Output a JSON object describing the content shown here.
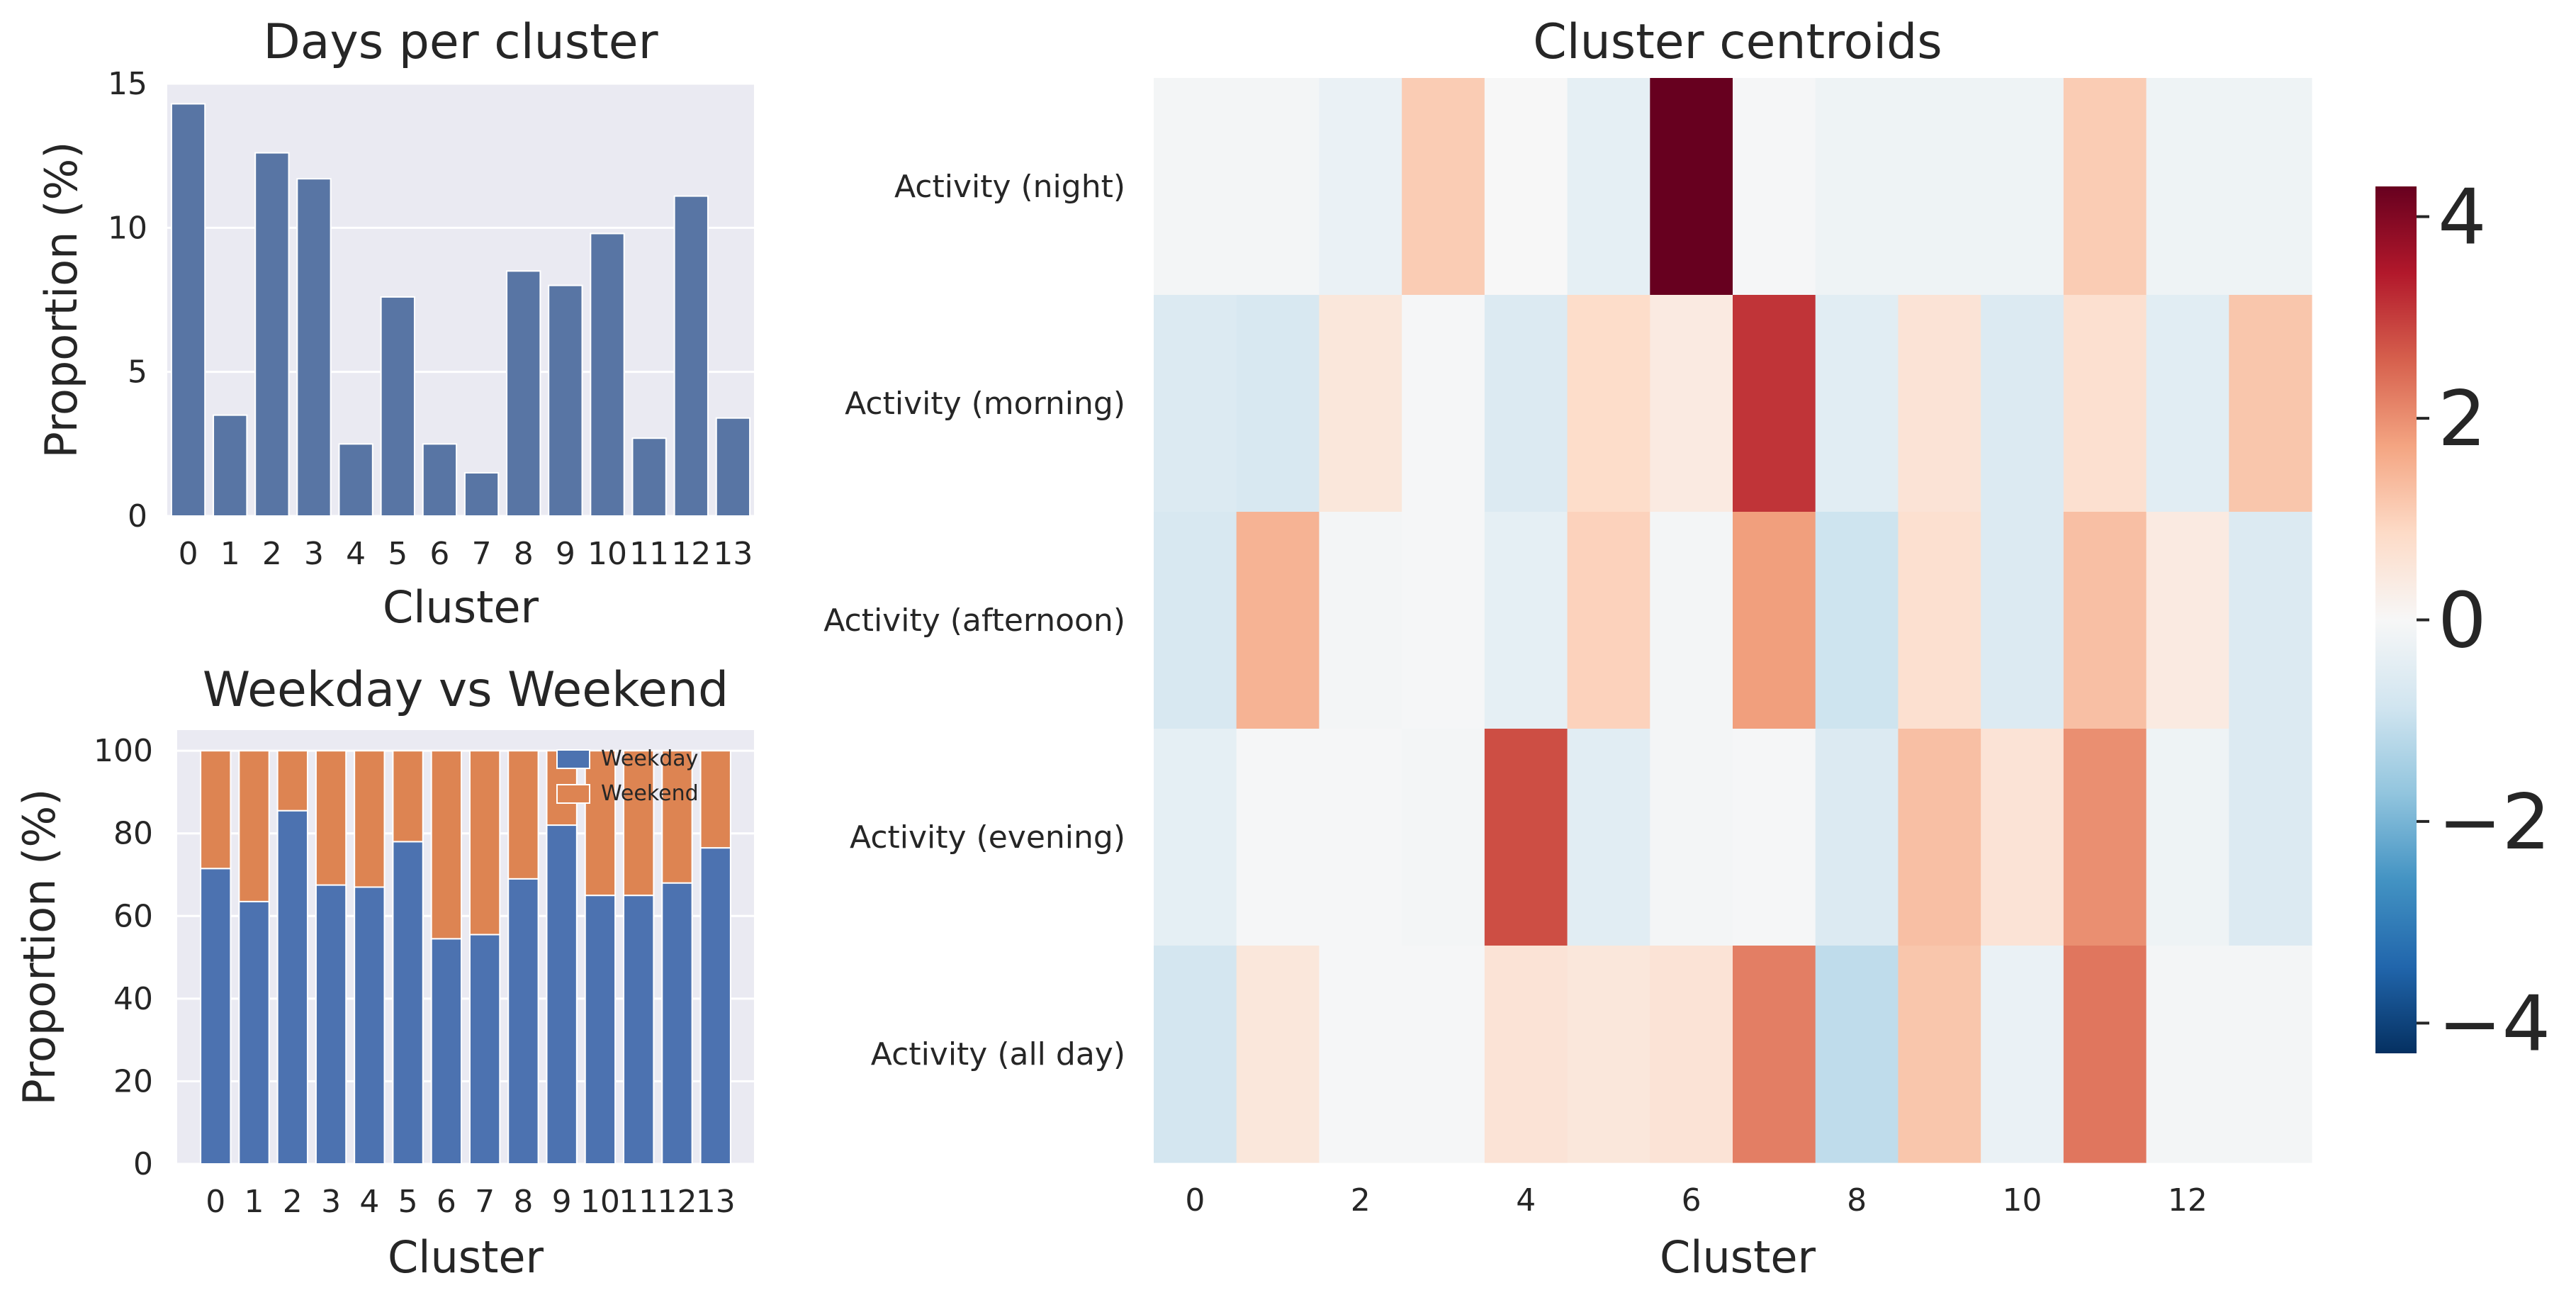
{
  "chart_data": [
    {
      "type": "bar",
      "title": "Days per cluster",
      "xlabel": "Cluster",
      "ylabel": "Proportion (%)",
      "categories": [
        "0",
        "1",
        "2",
        "3",
        "4",
        "5",
        "6",
        "7",
        "8",
        "9",
        "10",
        "11",
        "12",
        "13"
      ],
      "values": [
        14.3,
        3.5,
        12.6,
        11.7,
        2.5,
        7.6,
        2.5,
        1.5,
        8.5,
        8.0,
        9.8,
        2.7,
        11.1,
        3.4
      ],
      "ylim": [
        0,
        15
      ],
      "yticks": [
        0,
        5,
        10,
        15
      ],
      "grid": true,
      "color": "#5875a4",
      "background": "#eaeaf2"
    },
    {
      "type": "bar",
      "stacked": true,
      "title": "Weekday vs Weekend",
      "xlabel": "Cluster",
      "ylabel": "Proportion (%)",
      "categories": [
        "0",
        "1",
        "2",
        "3",
        "4",
        "5",
        "6",
        "7",
        "8",
        "9",
        "10",
        "11",
        "12",
        "13"
      ],
      "series": [
        {
          "name": "Weekday",
          "color": "#4c72b0",
          "values": [
            71.5,
            63.5,
            85.5,
            67.5,
            67.0,
            78.0,
            54.5,
            55.5,
            69.0,
            82.0,
            65.0,
            65.0,
            68.0,
            76.5
          ]
        },
        {
          "name": "Weekend",
          "color": "#dd8452",
          "values": [
            28.5,
            36.5,
            14.5,
            32.5,
            33.0,
            22.0,
            45.5,
            44.5,
            31.0,
            18.0,
            35.0,
            35.0,
            32.0,
            23.5
          ]
        }
      ],
      "ylim": [
        0,
        105
      ],
      "yticks": [
        0,
        20,
        40,
        60,
        80,
        100
      ],
      "legend": "top-right",
      "grid": true,
      "background": "#eaeaf2"
    },
    {
      "type": "heatmap",
      "title": "Cluster centroids",
      "xlabel": "Cluster",
      "columns": [
        "0",
        "1",
        "2",
        "3",
        "4",
        "5",
        "6",
        "7",
        "8",
        "9",
        "10",
        "11",
        "12",
        "13"
      ],
      "xticks": [
        "0",
        "2",
        "4",
        "6",
        "8",
        "10",
        "12"
      ],
      "rows": [
        "Activity (night)",
        "Activity (morning)",
        "Activity (afternoon)",
        "Activity (evening)",
        "Activity (all day)"
      ],
      "values": [
        [
          -0.1,
          -0.1,
          -0.3,
          1.1,
          0.0,
          -0.4,
          4.3,
          -0.05,
          -0.2,
          -0.2,
          -0.2,
          1.1,
          -0.2,
          -0.2
        ],
        [
          -0.6,
          -0.7,
          0.5,
          -0.05,
          -0.6,
          0.8,
          0.4,
          3.1,
          -0.5,
          0.6,
          -0.6,
          0.7,
          -0.5,
          1.2
        ],
        [
          -0.7,
          1.5,
          -0.1,
          -0.05,
          -0.4,
          1.0,
          -0.1,
          1.8,
          -0.9,
          0.7,
          -0.6,
          1.3,
          0.4,
          -0.6
        ],
        [
          -0.4,
          -0.05,
          -0.05,
          -0.1,
          2.8,
          -0.5,
          -0.1,
          -0.05,
          -0.6,
          1.3,
          0.6,
          2.0,
          -0.2,
          -0.6
        ],
        [
          -0.8,
          0.5,
          -0.05,
          -0.05,
          0.6,
          0.5,
          0.6,
          2.2,
          -1.1,
          1.2,
          -0.3,
          2.3,
          -0.1,
          -0.1
        ]
      ],
      "colormap": "RdBu_r",
      "vmin": -4.3,
      "vmax": 4.3,
      "colorbar_ticks": [
        "4",
        "2",
        "0",
        "−2",
        "−4"
      ],
      "colorbar_tick_values": [
        4,
        2,
        0,
        -2,
        -4
      ]
    }
  ]
}
